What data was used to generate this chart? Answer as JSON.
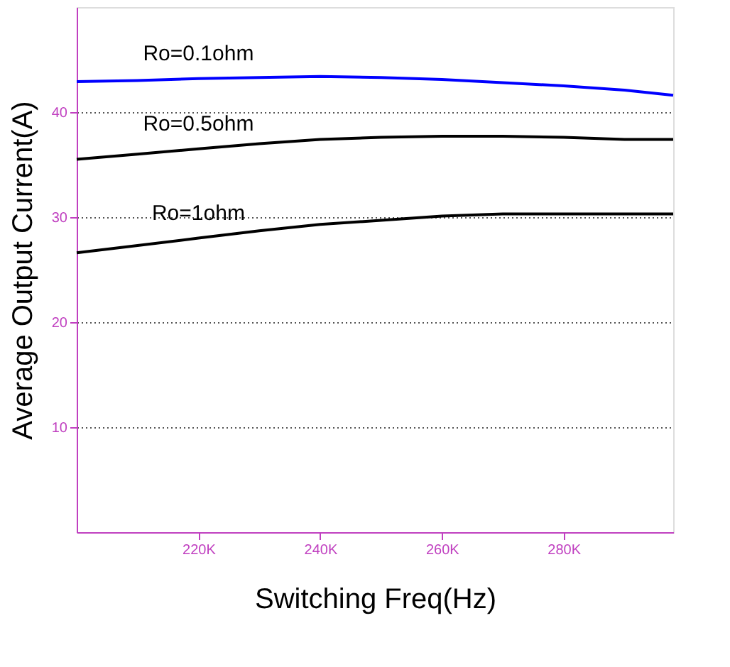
{
  "chart_data": {
    "type": "line",
    "xlabel": "Switching Freq(Hz)",
    "ylabel": "Average Output Current(A)",
    "xlim": [
      200000,
      298000
    ],
    "ylim": [
      0,
      50
    ],
    "xticks": [
      {
        "value": 220000,
        "label": "220K"
      },
      {
        "value": 240000,
        "label": "240K"
      },
      {
        "value": 260000,
        "label": "260K"
      },
      {
        "value": 280000,
        "label": "280K"
      }
    ],
    "yticks": [
      10,
      20,
      30,
      40
    ],
    "grid": "y",
    "legend": false,
    "line_style": "solid",
    "marker": "none",
    "series": [
      {
        "name": "Ro=0.1ohm",
        "color": "#0000ff",
        "x": [
          200000,
          210000,
          220000,
          230000,
          240000,
          250000,
          260000,
          270000,
          280000,
          290000,
          298000
        ],
        "values": [
          42.9,
          43.0,
          43.2,
          43.3,
          43.4,
          43.3,
          43.1,
          42.8,
          42.5,
          42.1,
          41.6
        ]
      },
      {
        "name": "Ro=0.5ohm",
        "color": "#000000",
        "x": [
          200000,
          210000,
          220000,
          230000,
          240000,
          250000,
          260000,
          270000,
          280000,
          290000,
          298000
        ],
        "values": [
          35.5,
          36.0,
          36.5,
          37.0,
          37.4,
          37.6,
          37.7,
          37.7,
          37.6,
          37.4,
          37.4
        ]
      },
      {
        "name": "Ro=1ohm",
        "color": "#000000",
        "x": [
          200000,
          210000,
          220000,
          230000,
          240000,
          250000,
          260000,
          270000,
          280000,
          290000,
          298000
        ],
        "values": [
          26.6,
          27.3,
          28.0,
          28.7,
          29.3,
          29.7,
          30.1,
          30.3,
          30.3,
          30.3,
          30.3
        ]
      }
    ]
  }
}
